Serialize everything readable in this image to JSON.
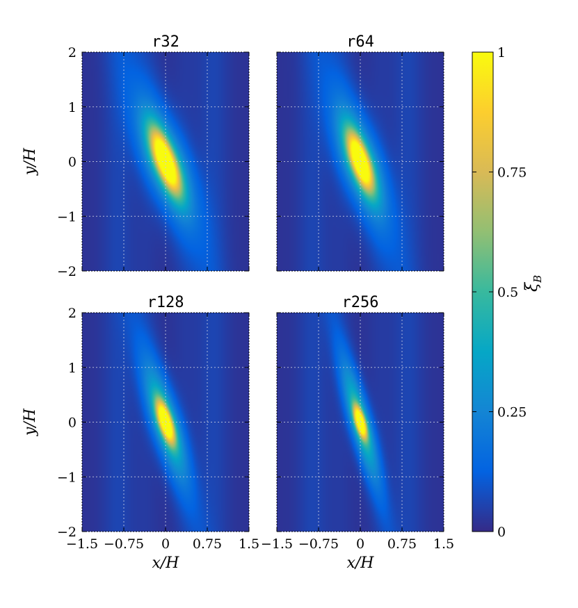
{
  "chart_data": {
    "type": "heatmap",
    "panels": [
      {
        "title": "r32",
        "peak_x": 0,
        "peak_y": 0,
        "tilt": -0.33,
        "width": 0.12
      },
      {
        "title": "r64",
        "peak_x": 0,
        "peak_y": 0,
        "tilt": -0.3,
        "width": 0.11
      },
      {
        "title": "r128",
        "peak_x": 0,
        "peak_y": 0,
        "tilt": -0.28,
        "width": 0.08
      },
      {
        "title": "r256",
        "peak_x": 0,
        "peak_y": 0,
        "tilt": -0.25,
        "width": 0.06
      }
    ],
    "xlabel": "x/H",
    "ylabel": "y/H",
    "xlim": [
      -1.5,
      1.5
    ],
    "ylim": [
      -2,
      2
    ],
    "xticks": [
      -1.5,
      -0.75,
      0,
      0.75,
      1.5
    ],
    "xtick_labels": [
      "−1.5",
      "−0.75",
      "0",
      "0.75",
      "1.5"
    ],
    "yticks": [
      2,
      1,
      0,
      -1,
      -2
    ],
    "ytick_labels": [
      "2",
      "1",
      "0",
      "−1",
      "−2"
    ],
    "grid": true,
    "colorbar": {
      "label": "ξ",
      "label_sub": "B",
      "range": [
        0,
        1
      ],
      "ticks": [
        1,
        0.75,
        0.5,
        0.25,
        0
      ],
      "tick_labels": [
        "1",
        "0.75",
        "0.5",
        "0.25",
        "0"
      ],
      "colormap": "parula",
      "colors": [
        "#352a87",
        "#0363e1",
        "#1485d4",
        "#06a7c6",
        "#38b99e",
        "#92bf73",
        "#d9ba56",
        "#fcce2e",
        "#f9fb0e"
      ]
    }
  }
}
